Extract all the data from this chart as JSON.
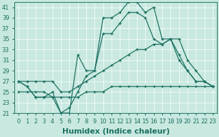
{
  "x": [
    0,
    1,
    2,
    3,
    4,
    5,
    6,
    7,
    8,
    9,
    10,
    11,
    12,
    13,
    14,
    15,
    16,
    17,
    18,
    19,
    20,
    21,
    22,
    23
  ],
  "s1": [
    27,
    26,
    24,
    24,
    25,
    21,
    21,
    32,
    29,
    29,
    39,
    39,
    40,
    42,
    42,
    40,
    41,
    35,
    35,
    32,
    29,
    27,
    27,
    26
  ],
  "s2": [
    27,
    26,
    24,
    24,
    24,
    21,
    22,
    25,
    28,
    29,
    36,
    36,
    38,
    40,
    40,
    39,
    35,
    34,
    35,
    31,
    29,
    27,
    27,
    26
  ],
  "s3": [
    27,
    27,
    27,
    27,
    27,
    25,
    25,
    26,
    27,
    28,
    29,
    30,
    31,
    32,
    33,
    33,
    34,
    34,
    35,
    35,
    31,
    29,
    27,
    26
  ],
  "s4": [
    25,
    25,
    25,
    25,
    24,
    24,
    24,
    24,
    25,
    25,
    25,
    26,
    26,
    26,
    26,
    26,
    26,
    26,
    26,
    26,
    26,
    26,
    26,
    26
  ],
  "color": "#1a7060",
  "bg": "#c8e8e0",
  "grid": "#ffffff",
  "xlabel": "Humidex (Indice chaleur)",
  "xlabel_fontsize": 8,
  "tick_fontsize": 6,
  "xlim": [
    -0.5,
    23.5
  ],
  "ylim": [
    21,
    42
  ],
  "yticks": [
    21,
    23,
    25,
    27,
    29,
    31,
    33,
    35,
    37,
    39,
    41
  ]
}
